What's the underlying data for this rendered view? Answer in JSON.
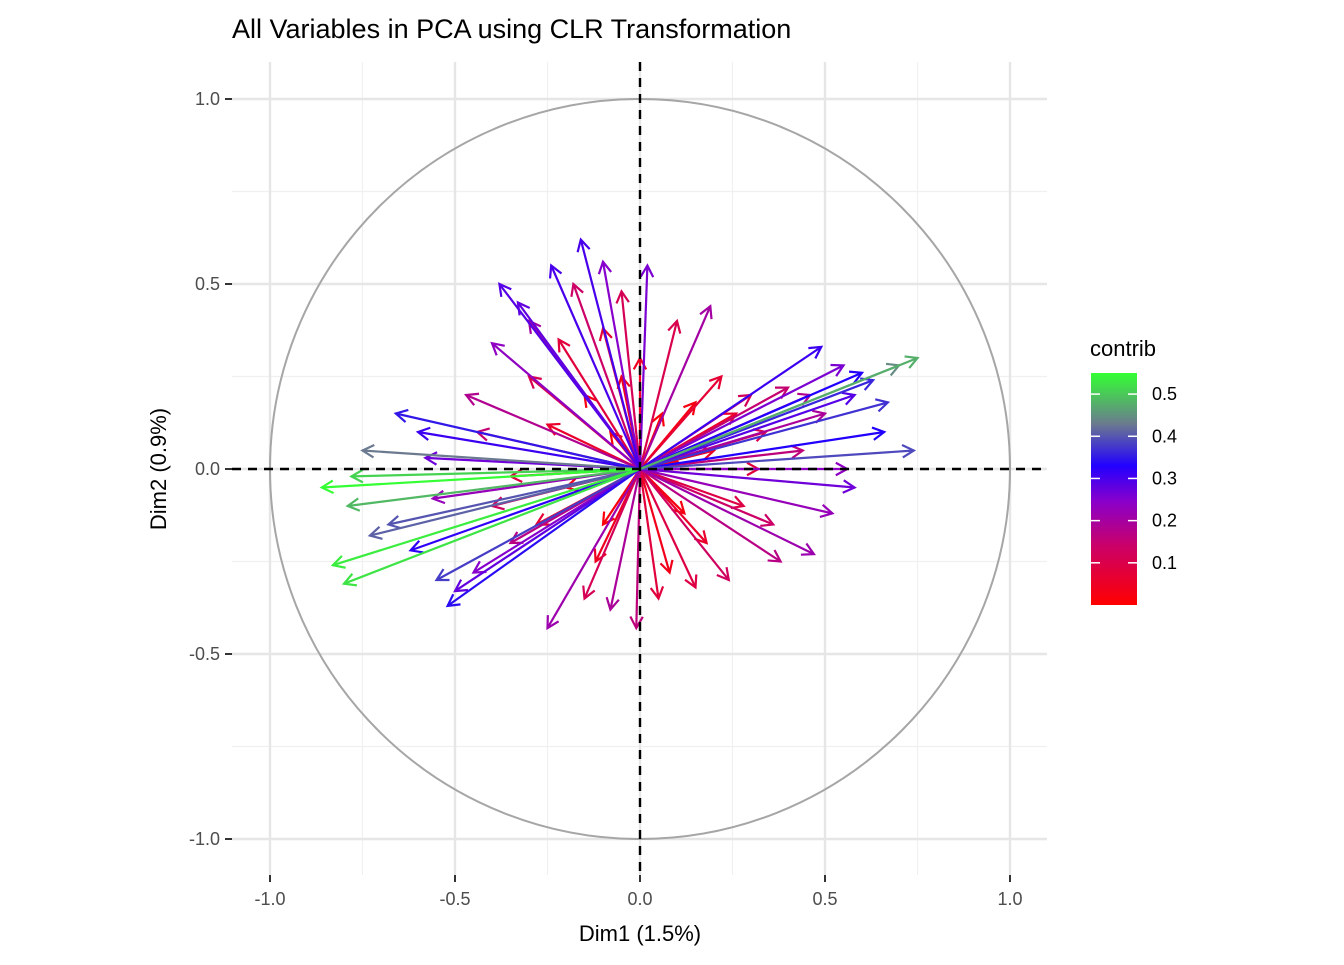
{
  "chart_data": {
    "type": "scatter",
    "title": "All Variables in PCA using CLR Transformation",
    "xlabel": "Dim1 (1.5%)",
    "ylabel": "Dim2 (0.9%)",
    "xlim": [
      -1.05,
      1.1
    ],
    "ylim": [
      -1.1,
      1.1
    ],
    "x_ticks": [
      -1.0,
      -0.5,
      0.0,
      0.5,
      1.0
    ],
    "x_tick_labels": [
      "-1.0",
      "-0.5",
      "0.0",
      "0.5",
      "1.0"
    ],
    "y_ticks": [
      -1.0,
      -0.5,
      0.0,
      0.5,
      1.0
    ],
    "y_tick_labels": [
      "-1.0",
      "-0.5",
      "0.0",
      "0.5",
      "1.0"
    ],
    "grid": true,
    "correlation_circle": true,
    "reference_lines": {
      "x": 0,
      "y": 0,
      "style": "dashed"
    },
    "color_variable": "contrib",
    "legend": {
      "title": "contrib",
      "position": "right",
      "breaks": [
        0.5,
        0.4,
        0.3,
        0.2,
        0.1
      ],
      "break_labels": [
        "0.5",
        "0.4",
        "0.3",
        "0.2",
        "0.1"
      ],
      "range": [
        0.0,
        0.55
      ],
      "colors": {
        "low": "#ff0000",
        "mid_low": "#aa00aa",
        "mid": "#3300ff",
        "mid_high": "#6b7a8f",
        "high": "#33ff33"
      }
    },
    "series": [
      {
        "vectors": [
          {
            "x": -0.86,
            "y": -0.05,
            "contrib": 0.55
          },
          {
            "x": -0.83,
            "y": -0.26,
            "contrib": 0.53
          },
          {
            "x": -0.8,
            "y": -0.31,
            "contrib": 0.52
          },
          {
            "x": -0.78,
            "y": -0.02,
            "contrib": 0.5
          },
          {
            "x": -0.79,
            "y": -0.1,
            "contrib": 0.47
          },
          {
            "x": 0.75,
            "y": 0.3,
            "contrib": 0.46
          },
          {
            "x": 0.7,
            "y": 0.28,
            "contrib": 0.42
          },
          {
            "x": -0.75,
            "y": 0.05,
            "contrib": 0.4
          },
          {
            "x": -0.73,
            "y": -0.18,
            "contrib": 0.38
          },
          {
            "x": -0.68,
            "y": -0.15,
            "contrib": 0.37
          },
          {
            "x": 0.74,
            "y": 0.05,
            "contrib": 0.36
          },
          {
            "x": -0.55,
            "y": -0.3,
            "contrib": 0.35
          },
          {
            "x": 0.67,
            "y": 0.18,
            "contrib": 0.34
          },
          {
            "x": 0.63,
            "y": 0.24,
            "contrib": 0.33
          },
          {
            "x": -0.66,
            "y": 0.15,
            "contrib": 0.32
          },
          {
            "x": -0.52,
            "y": -0.37,
            "contrib": 0.31
          },
          {
            "x": 0.66,
            "y": 0.1,
            "contrib": 0.3
          },
          {
            "x": 0.6,
            "y": 0.26,
            "contrib": 0.3
          },
          {
            "x": -0.62,
            "y": -0.22,
            "contrib": 0.29
          },
          {
            "x": 0.49,
            "y": 0.33,
            "contrib": 0.28
          },
          {
            "x": -0.6,
            "y": 0.1,
            "contrib": 0.28
          },
          {
            "x": -0.16,
            "y": 0.62,
            "contrib": 0.27
          },
          {
            "x": -0.24,
            "y": 0.55,
            "contrib": 0.27
          },
          {
            "x": -0.38,
            "y": 0.5,
            "contrib": 0.26
          },
          {
            "x": 0.58,
            "y": 0.2,
            "contrib": 0.26
          },
          {
            "x": -0.5,
            "y": -0.33,
            "contrib": 0.25
          },
          {
            "x": -0.33,
            "y": 0.45,
            "contrib": 0.25
          },
          {
            "x": 0.58,
            "y": -0.05,
            "contrib": 0.24
          },
          {
            "x": -0.58,
            "y": 0.03,
            "contrib": 0.24
          },
          {
            "x": 0.55,
            "y": 0.28,
            "contrib": 0.23
          },
          {
            "x": 0.02,
            "y": 0.55,
            "contrib": 0.23
          },
          {
            "x": -0.1,
            "y": 0.56,
            "contrib": 0.22
          },
          {
            "x": -0.45,
            "y": -0.28,
            "contrib": 0.22
          },
          {
            "x": 0.56,
            "y": 0.0,
            "contrib": 0.21
          },
          {
            "x": -0.4,
            "y": 0.34,
            "contrib": 0.21
          },
          {
            "x": 0.52,
            "y": -0.12,
            "contrib": 0.2
          },
          {
            "x": -0.56,
            "y": -0.08,
            "contrib": 0.2
          },
          {
            "x": -0.25,
            "y": -0.43,
            "contrib": 0.19
          },
          {
            "x": 0.47,
            "y": -0.23,
            "contrib": 0.19
          },
          {
            "x": 0.19,
            "y": 0.44,
            "contrib": 0.18
          },
          {
            "x": -0.3,
            "y": 0.4,
            "contrib": 0.18
          },
          {
            "x": 0.5,
            "y": 0.15,
            "contrib": 0.17
          },
          {
            "x": -0.08,
            "y": -0.38,
            "contrib": 0.17
          },
          {
            "x": 0.46,
            "y": 0.2,
            "contrib": 0.16
          },
          {
            "x": -0.47,
            "y": 0.2,
            "contrib": 0.16
          },
          {
            "x": 0.38,
            "y": -0.25,
            "contrib": 0.15
          },
          {
            "x": -0.35,
            "y": -0.2,
            "contrib": 0.15
          },
          {
            "x": 0.44,
            "y": 0.05,
            "contrib": 0.14
          },
          {
            "x": -0.01,
            "y": -0.43,
            "contrib": 0.14
          },
          {
            "x": -0.44,
            "y": 0.1,
            "contrib": 0.13
          },
          {
            "x": 0.4,
            "y": 0.22,
            "contrib": 0.13
          },
          {
            "x": -0.18,
            "y": 0.5,
            "contrib": 0.12
          },
          {
            "x": 0.36,
            "y": -0.15,
            "contrib": 0.12
          },
          {
            "x": -0.4,
            "y": -0.1,
            "contrib": 0.11
          },
          {
            "x": 0.24,
            "y": -0.3,
            "contrib": 0.11
          },
          {
            "x": 0.3,
            "y": 0.2,
            "contrib": 0.1
          },
          {
            "x": -0.15,
            "y": -0.35,
            "contrib": 0.1
          },
          {
            "x": -0.05,
            "y": 0.48,
            "contrib": 0.1
          },
          {
            "x": -0.3,
            "y": 0.25,
            "contrib": 0.09
          },
          {
            "x": 0.34,
            "y": 0.1,
            "contrib": 0.09
          },
          {
            "x": 0.1,
            "y": 0.4,
            "contrib": 0.09
          },
          {
            "x": 0.15,
            "y": -0.32,
            "contrib": 0.08
          },
          {
            "x": -0.35,
            "y": -0.02,
            "contrib": 0.08
          },
          {
            "x": 0.28,
            "y": -0.1,
            "contrib": 0.08
          },
          {
            "x": -0.22,
            "y": 0.35,
            "contrib": 0.07
          },
          {
            "x": 0.05,
            "y": -0.35,
            "contrib": 0.07
          },
          {
            "x": 0.32,
            "y": 0.0,
            "contrib": 0.07
          },
          {
            "x": -0.28,
            "y": -0.15,
            "contrib": 0.06
          },
          {
            "x": 0.22,
            "y": 0.25,
            "contrib": 0.06
          },
          {
            "x": -0.1,
            "y": 0.38,
            "contrib": 0.06
          },
          {
            "x": 0.18,
            "y": -0.2,
            "contrib": 0.05
          },
          {
            "x": -0.25,
            "y": 0.12,
            "contrib": 0.05
          },
          {
            "x": 0.26,
            "y": 0.15,
            "contrib": 0.05
          },
          {
            "x": 0.0,
            "y": 0.3,
            "contrib": 0.04
          },
          {
            "x": -0.12,
            "y": -0.25,
            "contrib": 0.04
          },
          {
            "x": 0.2,
            "y": 0.05,
            "contrib": 0.04
          },
          {
            "x": -0.2,
            "y": -0.05,
            "contrib": 0.03
          },
          {
            "x": 0.08,
            "y": -0.28,
            "contrib": 0.03
          },
          {
            "x": -0.05,
            "y": 0.25,
            "contrib": 0.03
          },
          {
            "x": 0.15,
            "y": 0.18,
            "contrib": 0.02
          },
          {
            "x": -0.15,
            "y": 0.2,
            "contrib": 0.02
          },
          {
            "x": 0.12,
            "y": -0.12,
            "contrib": 0.02
          },
          {
            "x": -0.1,
            "y": -0.15,
            "contrib": 0.01
          },
          {
            "x": 0.06,
            "y": 0.15,
            "contrib": 0.01
          },
          {
            "x": -0.08,
            "y": 0.1,
            "contrib": 0.01
          },
          {
            "x": 0.1,
            "y": 0.02,
            "contrib": 0.01
          }
        ]
      }
    ]
  }
}
